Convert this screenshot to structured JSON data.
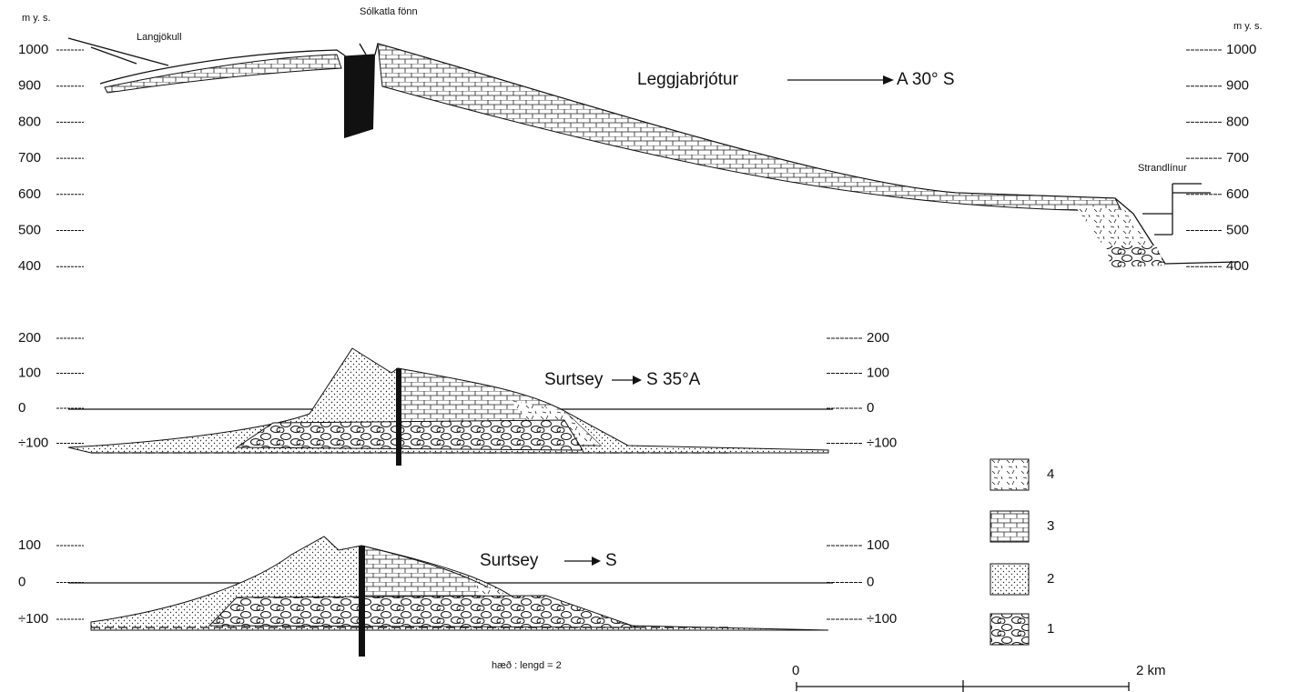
{
  "profile_1": {
    "unit_left": "m y. s.",
    "unit_right": "m y. s.",
    "left_axis": [
      "1000",
      "900",
      "800",
      "700",
      "600",
      "500",
      "400"
    ],
    "right_axis": [
      "1000",
      "900",
      "800",
      "700",
      "600",
      "500",
      "400"
    ],
    "glacier": "Langjökull",
    "snowfield": "Sólkatla fönn",
    "place": "Leggjabrjótur",
    "direction": "A 30° S",
    "shorelines": "Strandlínur"
  },
  "profile_2": {
    "left_axis": [
      "200",
      "100",
      "0",
      "÷100"
    ],
    "right_axis": [
      "200",
      "100",
      "0",
      "÷100"
    ],
    "place": "Surtsey",
    "direction": "S 35°A"
  },
  "profile_3": {
    "left_axis": [
      "100",
      "0",
      "÷100"
    ],
    "right_axis": [
      "100",
      "0",
      "÷100"
    ],
    "place": "Surtsey",
    "direction": "S"
  },
  "legend": [
    "4",
    "3",
    "2",
    "1"
  ],
  "ratio": "hæð : lengd = 2",
  "scale": {
    "start": "0",
    "end": "2 km"
  }
}
